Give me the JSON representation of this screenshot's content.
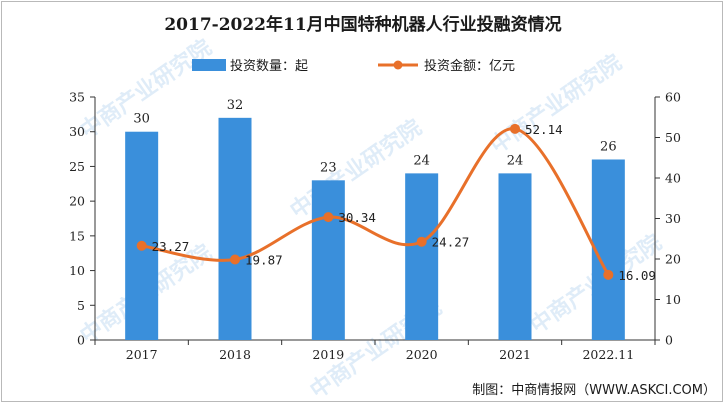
{
  "chart_data": {
    "type": "bar",
    "title": "2017-2022年11月中国特种机器人行业投融资情况",
    "categories": [
      "2017",
      "2018",
      "2019",
      "2020",
      "2021",
      "2022.11"
    ],
    "series": [
      {
        "name": "投资数量：起",
        "type": "bar",
        "axis": "left",
        "values": [
          30,
          32,
          23,
          24,
          24,
          26
        ],
        "labels": [
          "30",
          "32",
          "23",
          "24",
          "24",
          "26"
        ],
        "color": "#3a8fdb"
      },
      {
        "name": "投资金额：亿元",
        "type": "line",
        "axis": "right",
        "values": [
          23.27,
          19.87,
          30.34,
          24.27,
          52.14,
          16.09
        ],
        "labels": [
          "23.27",
          "19.87",
          "30.34",
          "24.27",
          "52.14",
          "16.09"
        ],
        "color": "#e8702a"
      }
    ],
    "y_left": {
      "min": 0,
      "max": 35,
      "ticks": [
        "0",
        "5",
        "10",
        "15",
        "20",
        "25",
        "30",
        "35"
      ]
    },
    "y_right": {
      "min": 0,
      "max": 60,
      "ticks": [
        "0",
        "10",
        "20",
        "30",
        "40",
        "50",
        "60"
      ]
    },
    "legend_position": "top-center",
    "grid": false
  },
  "credit": "制图：中商情报网（WWW.ASKCI.COM）",
  "watermark": {
    "text": "中商产业研究院"
  }
}
